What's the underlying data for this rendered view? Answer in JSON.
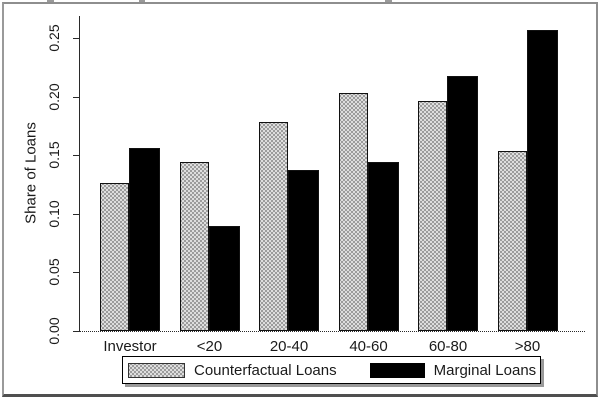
{
  "figure": {
    "ylabel": "Share of Loans",
    "legend": {
      "counterfactual_label": "Counterfactual Loans",
      "marginal_label": "Marginal Loans"
    }
  },
  "chart_data": {
    "type": "bar",
    "categories": [
      "Investor",
      "<20",
      "20-40",
      "40-60",
      "60-80",
      ">80"
    ],
    "series": [
      {
        "name": "Counterfactual Loans",
        "style": "gray-dotted",
        "color": "#9c9c9c",
        "values": [
          0.126,
          0.144,
          0.178,
          0.203,
          0.196,
          0.154
        ]
      },
      {
        "name": "Marginal Loans",
        "style": "solid-black",
        "color": "#000000",
        "values": [
          0.156,
          0.09,
          0.137,
          0.144,
          0.218,
          0.257
        ]
      }
    ],
    "title": "",
    "xlabel": "",
    "ylabel": "Share of Loans",
    "ylim": [
      0,
      0.27
    ],
    "y_ticks": [
      "0.00",
      "0.05",
      "0.10",
      "0.15",
      "0.20",
      "0.25"
    ],
    "grid": false,
    "legend_position": "bottom"
  }
}
